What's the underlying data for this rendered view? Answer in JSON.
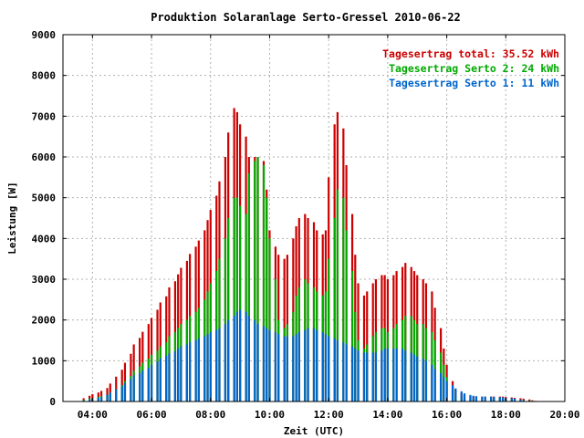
{
  "chart_data": {
    "type": "bar",
    "title": "Produktion Solaranlage Serto-Gressel 2010-06-22",
    "xlabel": "Zeit (UTC)",
    "ylabel": "Leistung [W]",
    "ylim": [
      0,
      9000
    ],
    "xlim_hours": [
      3.0,
      20.0
    ],
    "y_ticks": [
      "0",
      "1000",
      "2000",
      "3000",
      "4000",
      "5000",
      "6000",
      "7000",
      "8000",
      "9000"
    ],
    "x_ticks": [
      "04:00",
      "06:00",
      "08:00",
      "10:00",
      "12:00",
      "14:00",
      "16:00",
      "18:00",
      "20:00"
    ],
    "grid": true,
    "legend_position": "top-right",
    "legend": [
      {
        "label": "Tagesertrag total: 35.52 kWh",
        "color": "#cc0000"
      },
      {
        "label": "Tagesertrag Serto 2: 24 kWh",
        "color": "#00aa00"
      },
      {
        "label": "Tagesertrag Serto 1: 11 kWh",
        "color": "#0066cc"
      }
    ],
    "x": [
      3.7,
      3.9,
      4.0,
      4.2,
      4.3,
      4.5,
      4.6,
      4.8,
      5.0,
      5.1,
      5.3,
      5.4,
      5.6,
      5.7,
      5.9,
      6.0,
      6.2,
      6.3,
      6.5,
      6.6,
      6.8,
      6.9,
      7.0,
      7.2,
      7.3,
      7.5,
      7.6,
      7.8,
      7.9,
      8.0,
      8.2,
      8.3,
      8.5,
      8.6,
      8.8,
      8.9,
      9.0,
      9.2,
      9.3,
      9.5,
      9.6,
      9.8,
      9.9,
      10.0,
      10.2,
      10.3,
      10.5,
      10.6,
      10.8,
      10.9,
      11.0,
      11.2,
      11.3,
      11.5,
      11.6,
      11.8,
      11.9,
      12.0,
      12.2,
      12.3,
      12.5,
      12.6,
      12.8,
      12.9,
      13.0,
      13.2,
      13.3,
      13.5,
      13.6,
      13.8,
      13.9,
      14.0,
      14.2,
      14.3,
      14.5,
      14.6,
      14.8,
      14.9,
      15.0,
      15.2,
      15.3,
      15.5,
      15.6,
      15.8,
      15.9,
      16.0,
      16.2,
      16.3,
      16.5,
      16.6,
      16.8,
      16.9,
      17.0,
      17.2,
      17.3,
      17.5,
      17.6,
      17.8,
      17.9,
      18.0,
      18.2,
      18.3,
      18.5,
      18.6,
      18.8,
      18.9,
      19.0,
      19.2
    ],
    "series": [
      {
        "name": "Tagesertrag Serto 1: 11 kWh",
        "color": "#0066cc",
        "values": [
          20,
          50,
          70,
          90,
          110,
          160,
          220,
          290,
          370,
          450,
          550,
          640,
          700,
          760,
          820,
          900,
          980,
          1060,
          1120,
          1180,
          1230,
          1300,
          1350,
          1400,
          1450,
          1500,
          1550,
          1600,
          1650,
          1700,
          1750,
          1800,
          1900,
          2000,
          2100,
          2200,
          2250,
          2200,
          2100,
          2000,
          1900,
          1850,
          1800,
          1750,
          1700,
          1650,
          1600,
          1600,
          1600,
          1650,
          1700,
          1750,
          1800,
          1800,
          1750,
          1700,
          1650,
          1600,
          1550,
          1500,
          1450,
          1400,
          1350,
          1300,
          1250,
          1200,
          1200,
          1200,
          1200,
          1250,
          1300,
          1300,
          1300,
          1300,
          1300,
          1250,
          1200,
          1150,
          1100,
          1050,
          1000,
          900,
          800,
          700,
          600,
          500,
          400,
          320,
          250,
          200,
          160,
          140,
          130,
          120,
          120,
          120,
          110,
          110,
          100,
          90,
          80,
          70,
          50,
          30,
          20,
          10,
          5,
          0
        ]
      },
      {
        "name": "Tagesertrag Serto 2: 24 kWh",
        "color": "#00aa00",
        "values": [
          40,
          70,
          90,
          110,
          130,
          160,
          220,
          300,
          400,
          500,
          620,
          750,
          860,
          950,
          1050,
          1150,
          1250,
          1350,
          1450,
          1600,
          1700,
          1800,
          1900,
          2000,
          2100,
          2200,
          2300,
          2500,
          2700,
          2900,
          3200,
          3500,
          4000,
          4500,
          5000,
          5000,
          4800,
          4600,
          5600,
          5900,
          6000,
          5800,
          5000,
          4000,
          3000,
          2000,
          1800,
          1900,
          2200,
          2600,
          2800,
          3000,
          2900,
          2800,
          2700,
          2600,
          2700,
          3500,
          4500,
          5200,
          5000,
          4200,
          3200,
          2200,
          1500,
          1300,
          1400,
          1600,
          1700,
          1800,
          1800,
          1700,
          1800,
          1900,
          2000,
          2100,
          2100,
          2000,
          1900,
          1900,
          1800,
          1700,
          1500,
          1200,
          900,
          600,
          300,
          150,
          100,
          80,
          70,
          60,
          60,
          60,
          60,
          60,
          60,
          60,
          60,
          60,
          55,
          50,
          40,
          35,
          25,
          15,
          8,
          0
        ]
      },
      {
        "name": "Tagesertrag total: 35.52 kWh",
        "color": "#cc0000",
        "values": [
          80,
          140,
          180,
          220,
          260,
          330,
          440,
          610,
          780,
          950,
          1170,
          1400,
          1560,
          1710,
          1900,
          2050,
          2250,
          2430,
          2580,
          2800,
          2950,
          3120,
          3280,
          3450,
          3620,
          3800,
          3950,
          4200,
          4450,
          4700,
          5050,
          5400,
          6000,
          6600,
          7200,
          7100,
          6800,
          6500,
          6000,
          6000,
          6000,
          5900,
          5200,
          4200,
          3800,
          3600,
          3500,
          3600,
          4000,
          4300,
          4500,
          4600,
          4500,
          4400,
          4200,
          4100,
          4200,
          5500,
          6800,
          7100,
          6700,
          5800,
          4600,
          3600,
          2900,
          2600,
          2700,
          2900,
          3000,
          3100,
          3100,
          3000,
          3100,
          3200,
          3300,
          3400,
          3300,
          3200,
          3100,
          3000,
          2900,
          2700,
          2300,
          1800,
          1300,
          900,
          500,
          300,
          200,
          150,
          130,
          120,
          120,
          120,
          120,
          120,
          120,
          120,
          120,
          110,
          100,
          90,
          80,
          70,
          50,
          30,
          15,
          0
        ]
      }
    ]
  }
}
